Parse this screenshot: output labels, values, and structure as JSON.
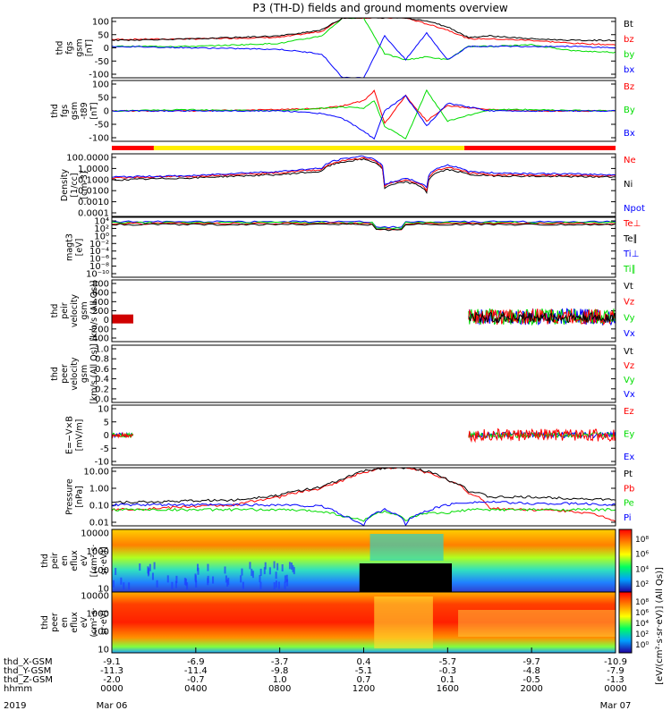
{
  "title": "P3 (TH-D) fields and ground moments overview",
  "colors": {
    "black": "#000000",
    "red": "#ff0000",
    "green": "#00dd00",
    "blue": "#0000ff"
  },
  "chart_data": [
    {
      "type": "line",
      "id": "p1",
      "ylabel": [
        "thd",
        "fgs",
        "gsm",
        "[nT]"
      ],
      "yticks": [
        "100",
        "50",
        "0",
        "-50",
        "-100"
      ],
      "ylim": [
        -100,
        100
      ],
      "legend": [
        {
          "name": "Bt",
          "color": "black"
        },
        {
          "name": "bz",
          "color": "red"
        },
        {
          "name": "by",
          "color": "green"
        },
        {
          "name": "bx",
          "color": "blue"
        }
      ],
      "series": [
        {
          "name": "bz",
          "color": "red",
          "x": [
            0,
            4,
            8,
            10,
            11,
            12,
            13,
            14,
            15,
            16,
            17,
            18,
            20,
            22,
            24
          ],
          "y": [
            28,
            30,
            35,
            55,
            100,
            100,
            100,
            100,
            80,
            60,
            30,
            30,
            25,
            15,
            10
          ]
        },
        {
          "name": "by",
          "color": "green",
          "x": [
            0,
            4,
            8,
            10,
            11,
            12,
            13,
            14,
            15,
            16,
            17,
            18,
            20,
            22,
            24
          ],
          "y": [
            5,
            5,
            15,
            40,
            100,
            100,
            -20,
            -40,
            -30,
            -40,
            5,
            5,
            10,
            -10,
            -15
          ]
        },
        {
          "name": "bx",
          "color": "blue",
          "x": [
            0,
            4,
            8,
            10,
            11,
            12,
            13,
            14,
            15,
            16,
            17,
            18,
            20,
            22,
            24
          ],
          "y": [
            5,
            0,
            -5,
            -20,
            -100,
            -100,
            40,
            -40,
            50,
            -40,
            5,
            5,
            5,
            5,
            0
          ]
        },
        {
          "name": "Bt",
          "color": "black",
          "x": [
            0,
            4,
            8,
            10,
            11,
            12,
            13,
            14,
            15,
            16,
            17,
            18,
            20,
            22,
            24
          ],
          "y": [
            25,
            30,
            40,
            60,
            100,
            100,
            100,
            100,
            90,
            70,
            35,
            40,
            30,
            25,
            25
          ]
        }
      ]
    },
    {
      "type": "line",
      "id": "p2",
      "ylabel": [
        "thd",
        "fgs",
        "gsm",
        "-t89",
        "[nT]"
      ],
      "yticks": [
        "100",
        "50",
        "0",
        "-50",
        "-100"
      ],
      "ylim": [
        -120,
        120
      ],
      "legend": [
        {
          "name": "Bz",
          "color": "red"
        },
        {
          "name": "By",
          "color": "green"
        },
        {
          "name": "Bx",
          "color": "blue"
        }
      ],
      "series": [
        {
          "name": "Bz",
          "color": "red",
          "x": [
            0,
            4,
            8,
            10,
            11,
            12,
            12.5,
            13,
            14,
            15,
            16,
            18,
            20,
            24
          ],
          "y": [
            0,
            0,
            5,
            10,
            20,
            40,
            80,
            -50,
            60,
            -40,
            20,
            5,
            0,
            0
          ]
        },
        {
          "name": "By",
          "color": "green",
          "x": [
            0,
            4,
            8,
            10,
            11,
            12,
            12.5,
            13,
            14,
            15,
            16,
            18,
            20,
            24
          ],
          "y": [
            0,
            5,
            0,
            10,
            15,
            10,
            40,
            -60,
            -110,
            80,
            -40,
            5,
            5,
            0
          ]
        },
        {
          "name": "Bx",
          "color": "blue",
          "x": [
            0,
            4,
            8,
            10,
            11,
            12,
            12.5,
            13,
            14,
            15,
            16,
            18,
            20,
            24
          ],
          "y": [
            0,
            0,
            0,
            -10,
            -30,
            -80,
            -110,
            0,
            60,
            -60,
            30,
            0,
            0,
            0
          ]
        }
      ]
    },
    {
      "type": "line",
      "id": "p3",
      "log": true,
      "ylabel": [
        "Density",
        "[1/cc]",
        "[cm-3]"
      ],
      "yticks": [
        "100.0000",
        "1.0000",
        "0.1000",
        "0.0100",
        "0.0010",
        "0.0001"
      ],
      "ylim": [
        0.0001,
        100
      ],
      "legend": [
        {
          "name": "Ne",
          "color": "red"
        },
        {
          "name": "Ni",
          "color": "black"
        },
        {
          "name": "Npot",
          "color": "blue"
        }
      ],
      "series": [
        {
          "name": "Ni",
          "color": "black",
          "x": [
            0,
            2,
            4,
            8,
            10,
            12,
            13,
            14,
            15,
            16,
            17,
            18,
            20,
            24
          ],
          "y": [
            0.3,
            0.4,
            0.5,
            1,
            2,
            30,
            0.05,
            0.2,
            0.02,
            3,
            1,
            0.8,
            0.7,
            0.6
          ]
        },
        {
          "name": "Ne",
          "color": "red",
          "x": [
            0,
            2,
            4,
            8,
            10,
            12,
            13,
            14,
            15,
            16,
            17,
            18,
            20,
            24
          ],
          "y": [
            0.5,
            0.6,
            0.7,
            1.5,
            3,
            40,
            0.08,
            0.3,
            0.03,
            5,
            1.5,
            1,
            0.9,
            0.8
          ]
        },
        {
          "name": "Npot",
          "color": "blue",
          "x": [
            0,
            2,
            4,
            8,
            10,
            12,
            13,
            14,
            15,
            16,
            17,
            18,
            20,
            24
          ],
          "y": [
            0.6,
            0.7,
            0.8,
            2,
            4,
            60,
            0.1,
            0.4,
            0.05,
            8,
            2,
            1.5,
            1.3,
            1
          ]
        }
      ]
    },
    {
      "type": "line",
      "id": "p4",
      "log": true,
      "ylabel": [
        "magt3",
        "[eV]"
      ],
      "yticks": [
        "10⁴",
        "10²",
        "10⁰",
        "10⁻²",
        "10⁻⁴",
        "10⁻⁶",
        "10⁻⁸",
        "10⁻¹⁰"
      ],
      "legend": [
        {
          "name": "Te⊥",
          "color": "red"
        },
        {
          "name": "Te∥",
          "color": "black"
        },
        {
          "name": "Ti⊥",
          "color": "blue"
        },
        {
          "name": "Ti∥",
          "color": "green"
        }
      ]
    },
    {
      "type": "line",
      "id": "p5",
      "ylabel": [
        "thd",
        "peir",
        "velocity",
        "gsm",
        "[km/s (All Qs)]"
      ],
      "yticks": [
        "800",
        "600",
        "400",
        "200",
        "0",
        "-200",
        "-400"
      ],
      "ylim": [
        -400,
        800
      ],
      "legend": [
        {
          "name": "Vt",
          "color": "black"
        },
        {
          "name": "Vz",
          "color": "red"
        },
        {
          "name": "Vy",
          "color": "green"
        },
        {
          "name": "Vx",
          "color": "blue"
        }
      ]
    },
    {
      "type": "line",
      "id": "p6",
      "ylabel": [
        "thd",
        "peer",
        "velocity",
        "gsm",
        "[km/s (All Qs)]"
      ],
      "yticks": [
        "1.0",
        "0.8",
        "0.6",
        "0.4",
        "0.2",
        "0.0"
      ],
      "ylim": [
        0,
        1
      ],
      "legend": [
        {
          "name": "Vt",
          "color": "black"
        },
        {
          "name": "Vz",
          "color": "red"
        },
        {
          "name": "Vy",
          "color": "green"
        },
        {
          "name": "Vx",
          "color": "blue"
        }
      ]
    },
    {
      "type": "line",
      "id": "p7",
      "ylabel": [
        "E=−V×B",
        "[mV/m]"
      ],
      "yticks": [
        "10",
        "5",
        "0",
        "-5",
        "-10"
      ],
      "ylim": [
        -10,
        10
      ],
      "legend": [
        {
          "name": "Ez",
          "color": "red"
        },
        {
          "name": "Ey",
          "color": "green"
        },
        {
          "name": "Ex",
          "color": "blue"
        }
      ]
    },
    {
      "type": "line",
      "id": "p8",
      "log": true,
      "ylabel": [
        "Pressure",
        "[nPa]"
      ],
      "yticks": [
        "10.00",
        "1.00",
        "0.10",
        "0.01"
      ],
      "ylim": [
        0.005,
        20
      ],
      "legend": [
        {
          "name": "Pt",
          "color": "black"
        },
        {
          "name": "Pb",
          "color": "red"
        },
        {
          "name": "Pe",
          "color": "green"
        },
        {
          "name": "Pi",
          "color": "blue"
        }
      ],
      "series": [
        {
          "name": "Pb",
          "color": "red",
          "x": [
            0,
            2,
            4,
            6,
            8,
            10,
            11,
            12,
            13,
            14,
            15,
            16,
            17,
            18,
            20,
            22,
            24
          ],
          "y": [
            0.05,
            0.06,
            0.08,
            0.1,
            0.3,
            1,
            3,
            10,
            20,
            20,
            10,
            3,
            0.5,
            0.06,
            0.05,
            0.04,
            0.01
          ]
        },
        {
          "name": "Pt",
          "color": "black",
          "x": [
            0,
            2,
            4,
            6,
            8,
            10,
            11,
            12,
            13,
            14,
            15,
            16,
            17,
            18,
            20,
            22,
            24
          ],
          "y": [
            0.15,
            0.15,
            0.18,
            0.2,
            0.4,
            1.2,
            3.5,
            12,
            20,
            20,
            12,
            3.5,
            0.7,
            0.3,
            0.3,
            0.25,
            0.2
          ]
        },
        {
          "name": "Pe",
          "color": "green",
          "x": [
            0,
            2,
            4,
            6,
            8,
            10,
            11,
            12,
            13,
            14,
            15,
            16,
            17,
            18,
            20,
            22,
            24
          ],
          "y": [
            0.05,
            0.05,
            0.05,
            0.05,
            0.05,
            0.04,
            0.02,
            0.01,
            0.04,
            0.01,
            0.03,
            0.03,
            0.05,
            0.05,
            0.05,
            0.05,
            0.05
          ]
        },
        {
          "name": "Pi",
          "color": "blue",
          "x": [
            0,
            2,
            4,
            6,
            8,
            10,
            11,
            12,
            13,
            14,
            15,
            16,
            17,
            18,
            20,
            22,
            24
          ],
          "y": [
            0.1,
            0.1,
            0.1,
            0.1,
            0.1,
            0.08,
            0.02,
            0.005,
            0.05,
            0.006,
            0.04,
            0.1,
            0.15,
            0.15,
            0.12,
            0.12,
            0.1
          ]
        }
      ]
    },
    {
      "type": "heatmap",
      "id": "p9",
      "ylabel": [
        "thd",
        "peir",
        "en",
        "eflux",
        "eV",
        "[(cm²·s·",
        "sr·eV)]"
      ],
      "yticks": [
        "10000",
        "1000",
        "100",
        "10"
      ],
      "colorbar_ticks": [
        "10⁸",
        "10⁶",
        "10⁴",
        "10²"
      ],
      "colorbar_label": "[eV/(cm²·s·sr·eV)] (All Qs)]"
    },
    {
      "type": "heatmap",
      "id": "p10",
      "ylabel": [
        "thd",
        "peer",
        "en",
        "eflux",
        "eV",
        "(cm²·s·",
        "sr·eV)"
      ],
      "yticks": [
        "10000",
        "1000",
        "100",
        "10"
      ],
      "colorbar_ticks": [
        "10⁸",
        "10⁶",
        "10⁴",
        "10²",
        "10⁰"
      ]
    }
  ],
  "xaxis": {
    "rows": [
      {
        "label": "thd_X-GSM",
        "values": [
          "-9.1",
          "-6.9",
          "-3.7",
          "0.4",
          "-5.7",
          "-9.7",
          "-10.9"
        ]
      },
      {
        "label": "thd_Y-GSM",
        "values": [
          "-11.3",
          "-11.4",
          "-9.8",
          "-5.1",
          "-0.3",
          "-4.8",
          "-7.9"
        ]
      },
      {
        "label": "thd_Z-GSM",
        "values": [
          "-2.0",
          "-0.7",
          "1.0",
          "0.7",
          "0.1",
          "-0.5",
          "-1.3"
        ]
      },
      {
        "label": "hhmm",
        "values": [
          "0000",
          "0400",
          "0800",
          "1200",
          "1600",
          "2000",
          "0000"
        ]
      }
    ],
    "year": "2019",
    "start_date": "Mar 06",
    "end_date": "Mar 07"
  }
}
